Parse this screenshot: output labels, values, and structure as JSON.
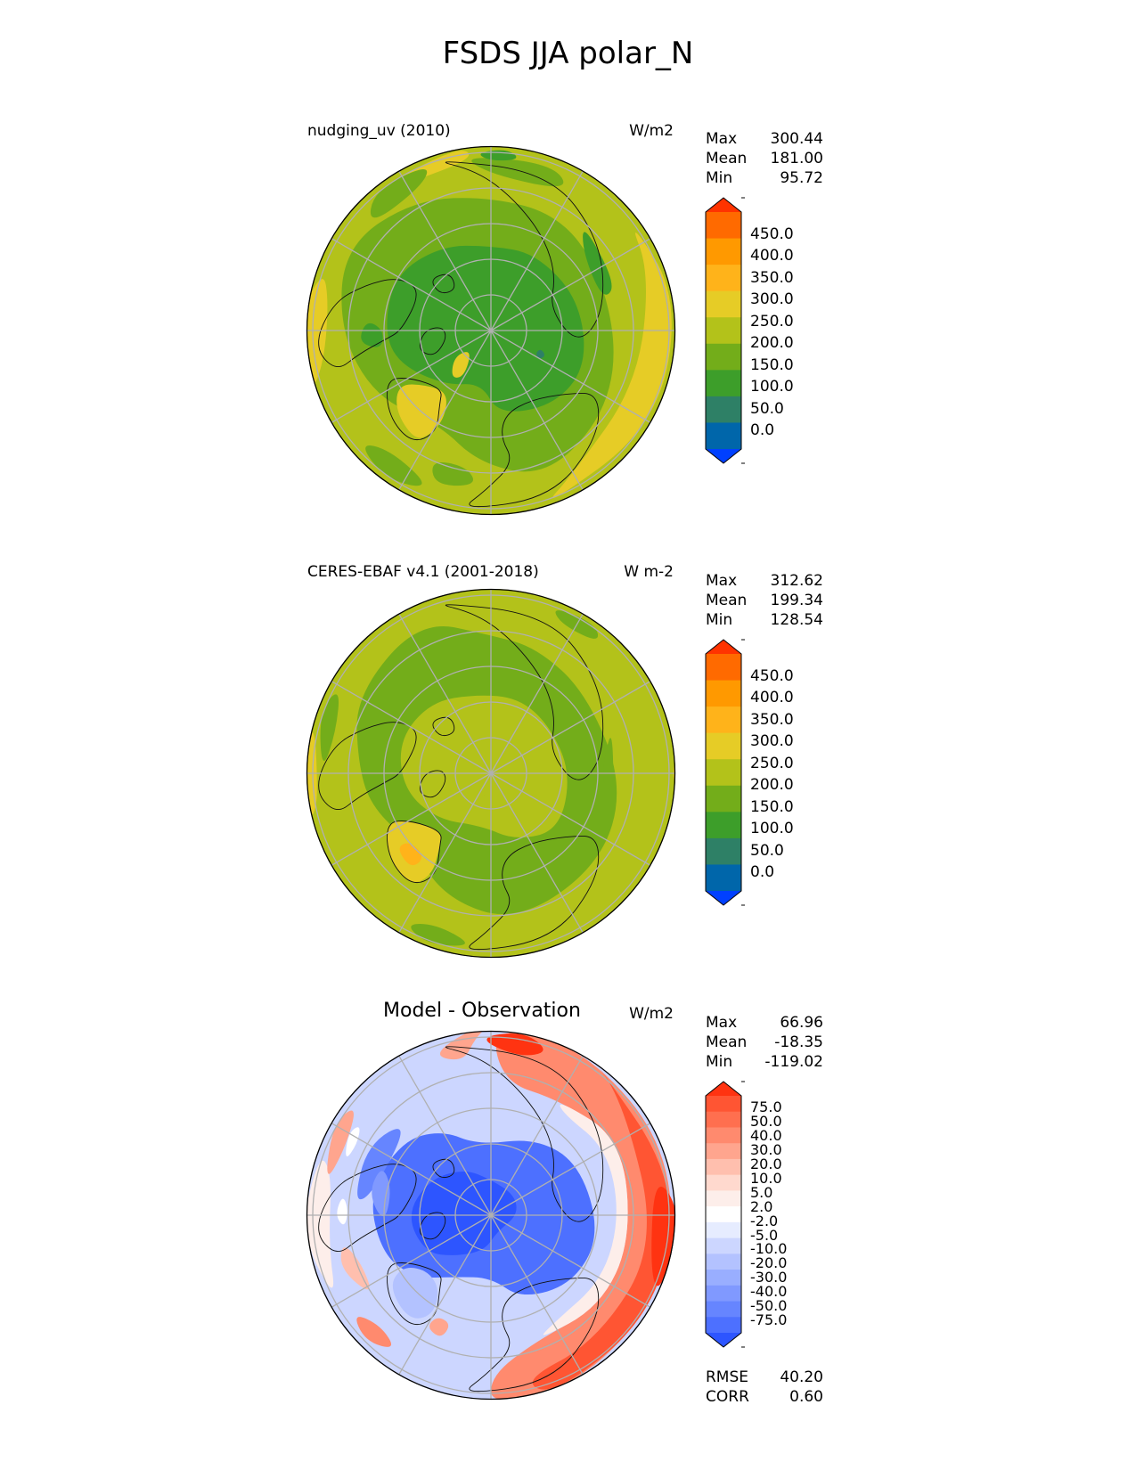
{
  "figure": {
    "title": "FSDS JJA polar_N"
  },
  "panels": [
    {
      "id": "test",
      "title": "nudging_uv (2010)",
      "units": "W/m2",
      "stats": [
        {
          "label": "Max",
          "value": "300.44"
        },
        {
          "label": "Mean",
          "value": "181.00"
        },
        {
          "label": "Min",
          "value": "95.72"
        }
      ],
      "colorbar": {
        "ticks": [
          "450.0",
          "400.0",
          "350.0",
          "300.0",
          "250.0",
          "200.0",
          "150.0",
          "100.0",
          "50.0",
          "0.0"
        ],
        "colors": [
          "#ff3300",
          "#ff6a00",
          "#ff9900",
          "#ffb31a",
          "#e6cc26",
          "#b3c21a",
          "#73ad1a",
          "#3d9e2a",
          "#2e8066",
          "#0066aa",
          "#0040ff"
        ]
      },
      "map": {
        "palette": "fsds",
        "variant": "model"
      }
    },
    {
      "id": "ref",
      "title": "CERES-EBAF v4.1 (2001-2018)",
      "units": "W m-2",
      "stats": [
        {
          "label": "Max",
          "value": "312.62"
        },
        {
          "label": "Mean",
          "value": "199.34"
        },
        {
          "label": "Min",
          "value": "128.54"
        }
      ],
      "colorbar": {
        "ticks": [
          "450.0",
          "400.0",
          "350.0",
          "300.0",
          "250.0",
          "200.0",
          "150.0",
          "100.0",
          "50.0",
          "0.0"
        ],
        "colors": [
          "#ff3300",
          "#ff6a00",
          "#ff9900",
          "#ffb31a",
          "#e6cc26",
          "#b3c21a",
          "#73ad1a",
          "#3d9e2a",
          "#2e8066",
          "#0066aa",
          "#0040ff"
        ]
      },
      "map": {
        "palette": "fsds",
        "variant": "obs"
      }
    },
    {
      "id": "diff",
      "title": "Model - Observation",
      "units": "W/m2",
      "stats": [
        {
          "label": "Max",
          "value": "66.96"
        },
        {
          "label": "Mean",
          "value": "-18.35"
        },
        {
          "label": "Min",
          "value": "-119.02"
        }
      ],
      "colorbar": {
        "ticks": [
          "75.0",
          "50.0",
          "40.0",
          "30.0",
          "20.0",
          "10.0",
          "5.0",
          "2.0",
          "-2.0",
          "-5.0",
          "-10.0",
          "-20.0",
          "-30.0",
          "-40.0",
          "-50.0",
          "-75.0"
        ],
        "colors": [
          "#ff3311",
          "#ff5533",
          "#ff6f4f",
          "#ff8a6e",
          "#ffa58e",
          "#ffbfae",
          "#ffd9ce",
          "#fdeeea",
          "#ffffff",
          "#e6ecff",
          "#ccd6ff",
          "#b3c2ff",
          "#99aeff",
          "#8099ff",
          "#6685ff",
          "#4d70ff",
          "#2d55ff"
        ]
      },
      "map": {
        "palette": "diff",
        "variant": "diff"
      },
      "metrics": [
        {
          "label": "RMSE",
          "value": "40.20"
        },
        {
          "label": "CORR",
          "value": "0.60"
        }
      ]
    }
  ]
}
